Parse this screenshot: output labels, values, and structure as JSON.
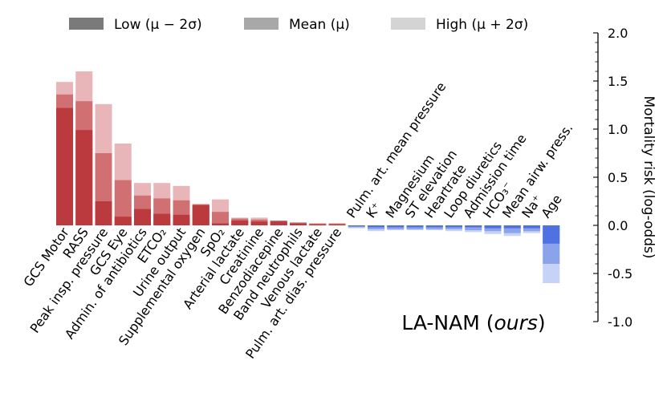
{
  "chart_data": {
    "type": "bar",
    "title_main": "LA-NAM (",
    "title_italic": "ours",
    "title_close": ")",
    "ylabel": "Mortality risk (log-odds)",
    "ylim": [
      -1.0,
      2.0
    ],
    "yticks": [
      "2.0",
      "1.5",
      "1.0",
      "0.5",
      "0.0",
      "-0.5",
      "-1.0"
    ],
    "ytick_values": [
      2.0,
      1.5,
      1.0,
      0.5,
      0.0,
      -0.5,
      -1.0
    ],
    "legend": [
      {
        "name": "Low (μ − 2σ)",
        "color": "#7a7a7a"
      },
      {
        "name": "Mean (μ)",
        "color": "#a8a8a8"
      },
      {
        "name": "High (μ + 2σ)",
        "color": "#d4d4d4"
      }
    ],
    "colors": {
      "pos_low": "#bb3a3d",
      "pos_mean": "#d07073",
      "pos_high": "#e8b6b8",
      "neg_low": "#4f72e0",
      "neg_mean": "#8aa3ea",
      "neg_high": "#c6d3f6"
    },
    "categories": [
      "GCS Motor",
      "RASS",
      "Peak insp. pressure",
      "GCS Eye",
      "Admin. of antibiotics",
      "ETCO₂",
      "Urine output",
      "Supplemental oxygen",
      "SpO₂",
      "Arterial lactate",
      "Creatinine",
      "Benzodiacepine",
      "Band neutrophils",
      "Venous lactate",
      "Pulm. art. dias. pressure",
      "Pulm. art. mean pressure",
      "K⁺",
      "Magnesium",
      "ST elevation",
      "Heartrate",
      "Loop diuretics",
      "Admission time",
      "HCO₃⁻",
      "Mean airw. press.",
      "Na⁺",
      "Age"
    ],
    "series": [
      {
        "name": "Low (μ − 2σ)",
        "values": [
          1.22,
          0.99,
          0.25,
          0.09,
          0.17,
          0.12,
          0.11,
          0.21,
          0.02,
          0.05,
          0.04,
          0.04,
          0.02,
          0.01,
          0.01,
          -0.01,
          -0.02,
          -0.02,
          -0.02,
          -0.02,
          -0.02,
          -0.02,
          -0.03,
          -0.03,
          -0.03,
          -0.19
        ]
      },
      {
        "name": "Mean (μ)",
        "values": [
          1.36,
          1.29,
          0.75,
          0.47,
          0.31,
          0.28,
          0.26,
          0.22,
          0.14,
          0.07,
          0.06,
          0.05,
          0.03,
          0.02,
          0.02,
          -0.02,
          -0.04,
          -0.04,
          -0.04,
          -0.04,
          -0.04,
          -0.05,
          -0.06,
          -0.08,
          -0.06,
          -0.4
        ]
      },
      {
        "name": "High (μ + 2σ)",
        "values": [
          1.49,
          1.6,
          1.26,
          0.85,
          0.44,
          0.44,
          0.41,
          0.22,
          0.27,
          0.08,
          0.08,
          0.05,
          0.03,
          0.02,
          0.02,
          -0.03,
          -0.06,
          -0.05,
          -0.05,
          -0.05,
          -0.06,
          -0.07,
          -0.09,
          -0.11,
          -0.08,
          -0.6
        ]
      }
    ]
  }
}
